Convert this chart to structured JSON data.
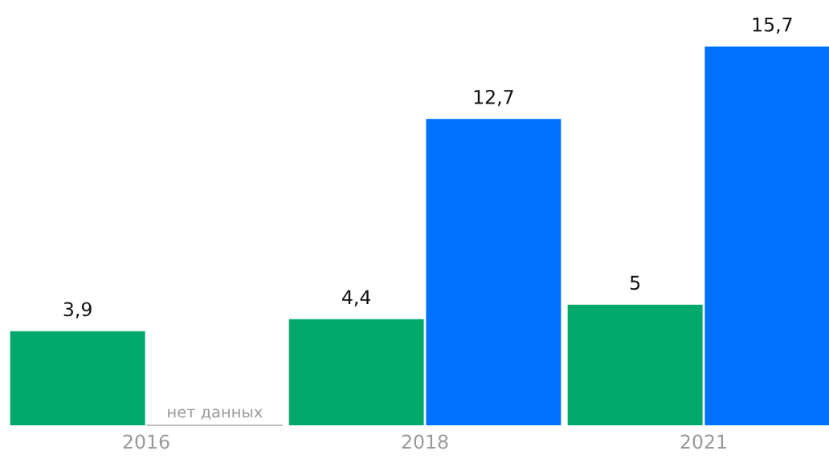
{
  "chart_data": {
    "type": "bar",
    "categories": [
      "2016",
      "2018",
      "2021"
    ],
    "series": [
      {
        "color": "#00a86b",
        "values": [
          3.9,
          4.4,
          5
        ],
        "value_labels": [
          "3,9",
          "4,4",
          "5"
        ]
      },
      {
        "color": "#0070ff",
        "values": [
          null,
          12.7,
          15.7
        ],
        "value_labels": [
          null,
          "12,7",
          "15,7"
        ]
      }
    ],
    "annotations": [
      {
        "text": "нет данных",
        "x": "2016"
      }
    ],
    "grid": false,
    "legend": false
  }
}
